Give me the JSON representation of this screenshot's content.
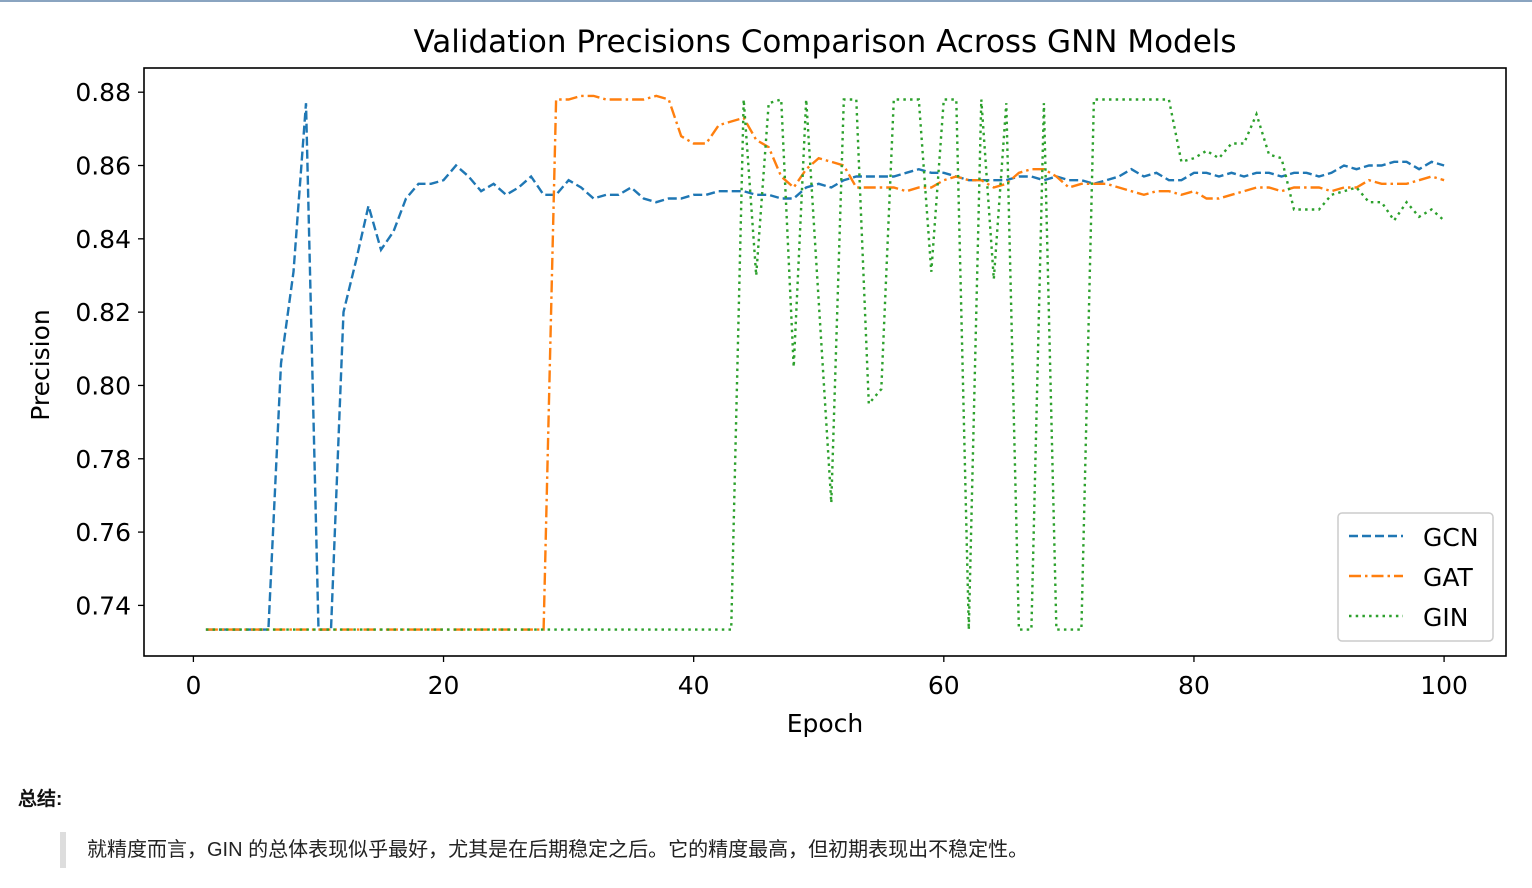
{
  "chart_data": {
    "type": "line",
    "title": "Validation Precisions Comparison Across GNN Models",
    "xlabel": "Epoch",
    "ylabel": "Precision",
    "xlim": [
      -3.95,
      104.95
    ],
    "ylim": [
      0.7262,
      0.8866
    ],
    "xticks": [
      0,
      20,
      40,
      60,
      80,
      100
    ],
    "xtick_labels": [
      "0",
      "20",
      "40",
      "60",
      "80",
      "100"
    ],
    "yticks": [
      0.74,
      0.76,
      0.78,
      0.8,
      0.82,
      0.84,
      0.86,
      0.88
    ],
    "ytick_labels": [
      "0.74",
      "0.76",
      "0.78",
      "0.80",
      "0.82",
      "0.84",
      "0.86",
      "0.88"
    ],
    "grid": false,
    "legend_position": "lower-right",
    "x_start": 1,
    "series": [
      {
        "name": "GCN",
        "color": "#1f77b4",
        "linestyle": "dashed",
        "values": [
          0.7334,
          0.7334,
          0.7334,
          0.7334,
          0.7334,
          0.7334,
          0.806,
          0.831,
          0.877,
          0.7334,
          0.7334,
          0.82,
          0.834,
          0.849,
          0.837,
          0.842,
          0.851,
          0.855,
          0.855,
          0.856,
          0.86,
          0.857,
          0.853,
          0.855,
          0.852,
          0.854,
          0.857,
          0.852,
          0.852,
          0.856,
          0.854,
          0.851,
          0.852,
          0.852,
          0.854,
          0.851,
          0.85,
          0.851,
          0.851,
          0.852,
          0.852,
          0.853,
          0.853,
          0.853,
          0.852,
          0.852,
          0.851,
          0.851,
          0.854,
          0.855,
          0.854,
          0.856,
          0.857,
          0.857,
          0.857,
          0.857,
          0.858,
          0.859,
          0.858,
          0.858,
          0.857,
          0.856,
          0.856,
          0.856,
          0.856,
          0.857,
          0.857,
          0.856,
          0.857,
          0.856,
          0.856,
          0.855,
          0.856,
          0.857,
          0.859,
          0.857,
          0.858,
          0.856,
          0.856,
          0.858,
          0.858,
          0.857,
          0.858,
          0.857,
          0.858,
          0.858,
          0.857,
          0.858,
          0.858,
          0.857,
          0.858,
          0.86,
          0.859,
          0.86,
          0.86,
          0.861,
          0.861,
          0.859,
          0.861,
          0.86
        ]
      },
      {
        "name": "GAT",
        "color": "#ff7f0e",
        "linestyle": "dashdot",
        "values": [
          0.7334,
          0.7334,
          0.7334,
          0.7334,
          0.7334,
          0.7334,
          0.7334,
          0.7334,
          0.7334,
          0.7334,
          0.7334,
          0.7334,
          0.7334,
          0.7334,
          0.7334,
          0.7334,
          0.7334,
          0.7334,
          0.7334,
          0.7334,
          0.7334,
          0.7334,
          0.7334,
          0.7334,
          0.7334,
          0.7334,
          0.7334,
          0.7334,
          0.878,
          0.878,
          0.879,
          0.879,
          0.878,
          0.878,
          0.878,
          0.878,
          0.879,
          0.878,
          0.868,
          0.866,
          0.866,
          0.871,
          0.872,
          0.873,
          0.867,
          0.865,
          0.857,
          0.854,
          0.859,
          0.862,
          0.861,
          0.86,
          0.854,
          0.854,
          0.854,
          0.854,
          0.853,
          0.854,
          0.854,
          0.856,
          0.857,
          0.856,
          0.856,
          0.854,
          0.855,
          0.858,
          0.859,
          0.859,
          0.857,
          0.854,
          0.855,
          0.855,
          0.855,
          0.854,
          0.853,
          0.852,
          0.853,
          0.853,
          0.852,
          0.853,
          0.851,
          0.851,
          0.852,
          0.853,
          0.854,
          0.854,
          0.853,
          0.854,
          0.854,
          0.854,
          0.853,
          0.854,
          0.854,
          0.856,
          0.855,
          0.855,
          0.855,
          0.856,
          0.857,
          0.856
        ]
      },
      {
        "name": "GIN",
        "color": "#2ca02c",
        "linestyle": "dotted",
        "values": [
          0.7334,
          0.7334,
          0.7334,
          0.7334,
          0.7334,
          0.7334,
          0.7334,
          0.7334,
          0.7334,
          0.7334,
          0.7334,
          0.7334,
          0.7334,
          0.7334,
          0.7334,
          0.7334,
          0.7334,
          0.7334,
          0.7334,
          0.7334,
          0.7334,
          0.7334,
          0.7334,
          0.7334,
          0.7334,
          0.7334,
          0.7334,
          0.7334,
          0.7334,
          0.7334,
          0.7334,
          0.7334,
          0.7334,
          0.7334,
          0.7334,
          0.7334,
          0.7334,
          0.7334,
          0.7334,
          0.7334,
          0.7334,
          0.7334,
          0.7334,
          0.878,
          0.83,
          0.877,
          0.878,
          0.805,
          0.878,
          0.823,
          0.768,
          0.878,
          0.878,
          0.795,
          0.799,
          0.878,
          0.878,
          0.878,
          0.831,
          0.878,
          0.878,
          0.7334,
          0.878,
          0.829,
          0.877,
          0.7334,
          0.7334,
          0.877,
          0.7334,
          0.7334,
          0.7334,
          0.878,
          0.878,
          0.878,
          0.878,
          0.878,
          0.878,
          0.878,
          0.861,
          0.862,
          0.864,
          0.862,
          0.866,
          0.866,
          0.874,
          0.863,
          0.862,
          0.848,
          0.848,
          0.848,
          0.852,
          0.853,
          0.854,
          0.85,
          0.85,
          0.845,
          0.85,
          0.846,
          0.848,
          0.845
        ]
      }
    ]
  },
  "summary": {
    "label": "总结:",
    "text": "就精度而言，GIN 的总体表现似乎最好，尤其是在后期稳定之后。它的精度最高，但初期表现出不稳定性。"
  }
}
